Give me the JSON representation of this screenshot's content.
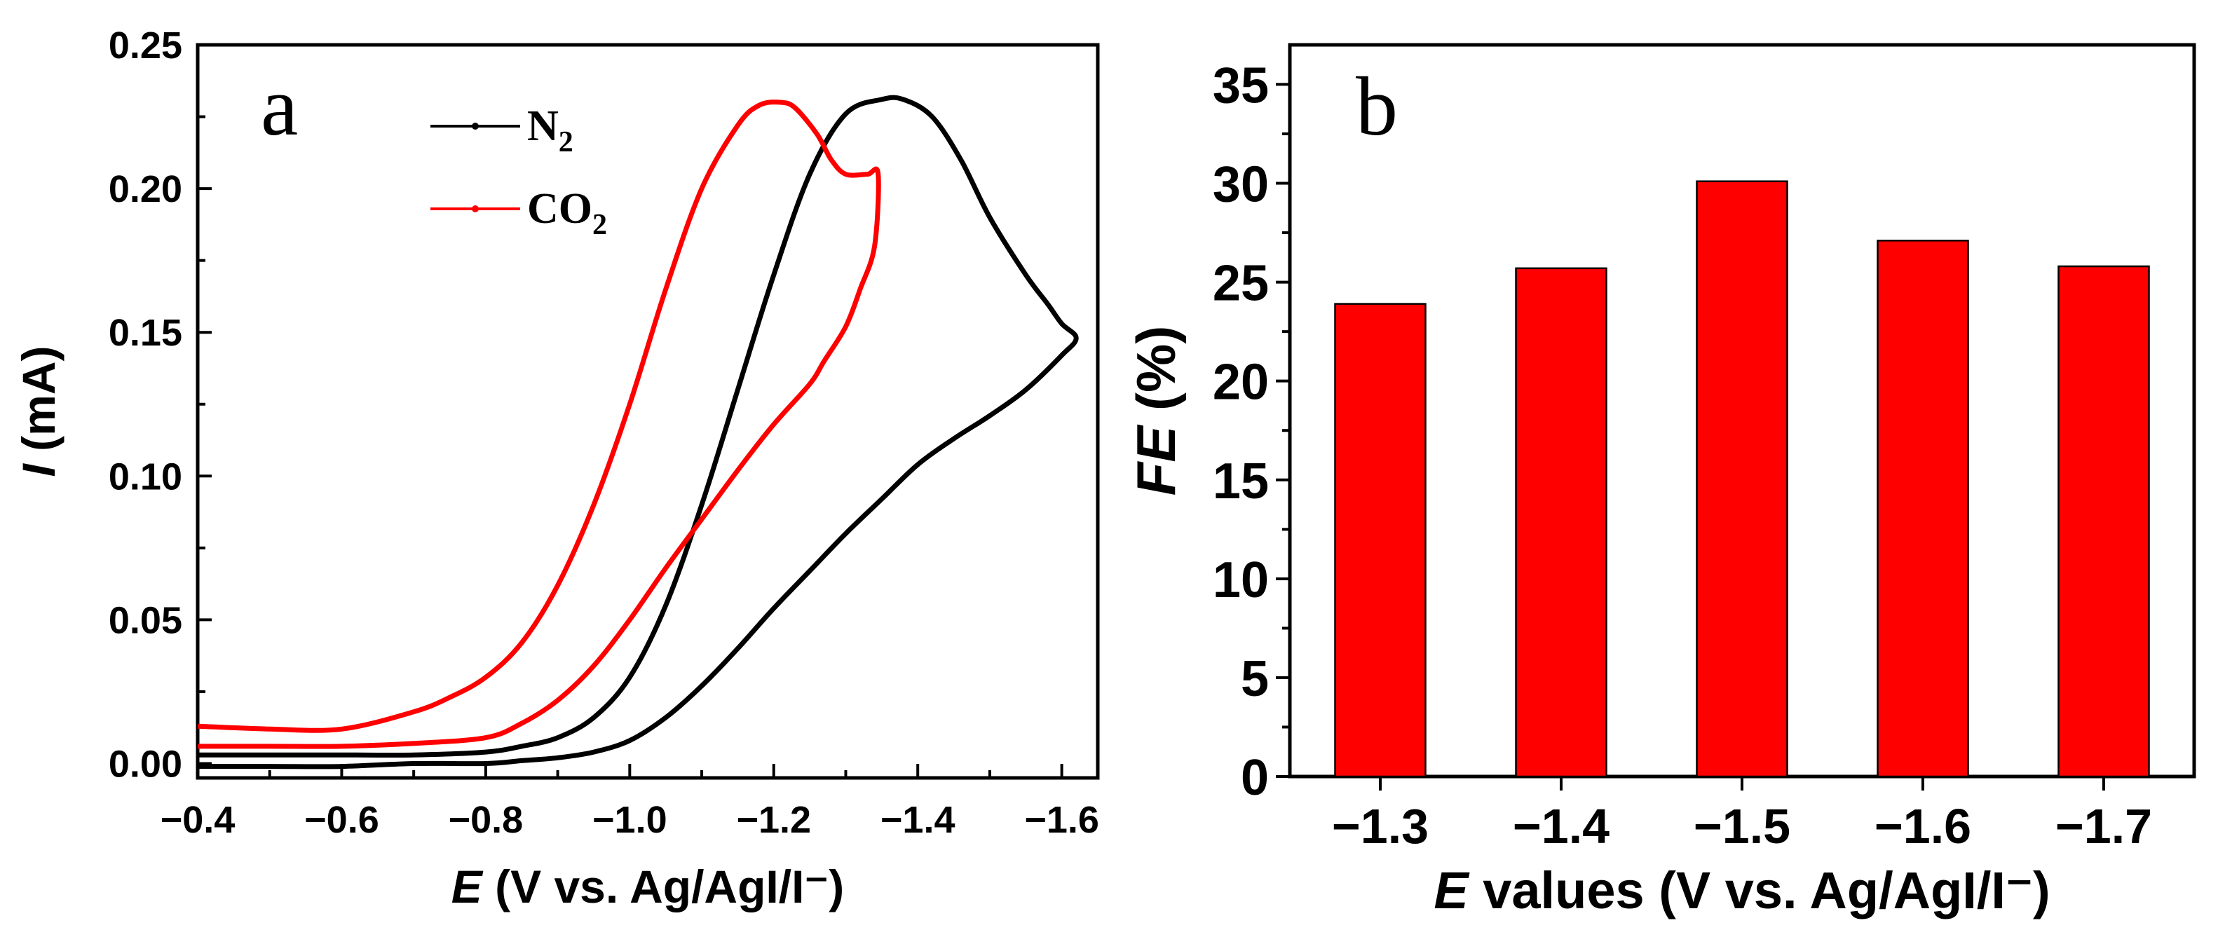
{
  "chart_data": [
    {
      "type": "line",
      "panel_label": "a",
      "xlabel_italic": "E",
      "xlabel_rest": " (V vs. Ag/AgI/I⁻)",
      "ylabel_italic": "I",
      "ylabel_rest": " (mA)",
      "xlim": [
        -0.4,
        -1.65
      ],
      "ylim": [
        -0.005,
        0.25
      ],
      "x_ticks": [
        "−0.4",
        "−0.6",
        "−0.8",
        "−1.0",
        "−1.2",
        "−1.4",
        "−1.6"
      ],
      "x_tick_values": [
        -0.4,
        -0.6,
        -0.8,
        -1.0,
        -1.2,
        -1.4,
        -1.6
      ],
      "y_ticks": [
        "0.00",
        "0.05",
        "0.10",
        "0.15",
        "0.20",
        "0.25"
      ],
      "y_tick_values": [
        0.0,
        0.05,
        0.1,
        0.15,
        0.2,
        0.25
      ],
      "legend_position": "top-center",
      "series": [
        {
          "name": "N₂",
          "legend_main": "N",
          "legend_sub": "2",
          "color": "#000000",
          "x": [
            -0.4,
            -0.5,
            -0.6,
            -0.7,
            -0.8,
            -0.85,
            -0.9,
            -0.95,
            -1.0,
            -1.05,
            -1.1,
            -1.15,
            -1.2,
            -1.25,
            -1.3,
            -1.35,
            -1.38,
            -1.42,
            -1.46,
            -1.5,
            -1.55,
            -1.58,
            -1.6,
            -1.62,
            -1.6,
            -1.55,
            -1.5,
            -1.45,
            -1.4,
            -1.35,
            -1.3,
            -1.25,
            -1.2,
            -1.15,
            -1.1,
            -1.05,
            -1.0,
            -0.95,
            -0.9,
            -0.85,
            -0.8,
            -0.7,
            -0.6,
            -0.5,
            -0.4
          ],
          "y": [
            0.003,
            0.003,
            0.003,
            0.003,
            0.004,
            0.006,
            0.009,
            0.016,
            0.03,
            0.055,
            0.09,
            0.13,
            0.17,
            0.205,
            0.226,
            0.231,
            0.231,
            0.225,
            0.21,
            0.19,
            0.17,
            0.16,
            0.153,
            0.148,
            0.142,
            0.13,
            0.121,
            0.113,
            0.104,
            0.092,
            0.08,
            0.067,
            0.054,
            0.04,
            0.027,
            0.016,
            0.008,
            0.004,
            0.002,
            0.001,
            0.0,
            0.0,
            -0.001,
            -0.001,
            -0.001
          ]
        },
        {
          "name": "CO₂",
          "legend_main": "CO",
          "legend_sub": "2",
          "color": "#ff0000",
          "x": [
            -0.4,
            -0.5,
            -0.6,
            -0.7,
            -0.75,
            -0.8,
            -0.85,
            -0.9,
            -0.95,
            -1.0,
            -1.05,
            -1.1,
            -1.15,
            -1.18,
            -1.21,
            -1.23,
            -1.26,
            -1.28,
            -1.3,
            -1.33,
            -1.345,
            -1.34,
            -1.32,
            -1.3,
            -1.27,
            -1.25,
            -1.2,
            -1.15,
            -1.1,
            -1.05,
            -1.0,
            -0.95,
            -0.9,
            -0.85,
            -0.8,
            -0.7,
            -0.6,
            -0.5,
            -0.4
          ],
          "y": [
            0.013,
            0.012,
            0.012,
            0.018,
            0.023,
            0.03,
            0.042,
            0.062,
            0.09,
            0.125,
            0.165,
            0.2,
            0.222,
            0.229,
            0.23,
            0.228,
            0.219,
            0.21,
            0.205,
            0.205,
            0.205,
            0.18,
            0.165,
            0.152,
            0.14,
            0.132,
            0.118,
            0.102,
            0.085,
            0.068,
            0.05,
            0.034,
            0.022,
            0.014,
            0.009,
            0.007,
            0.006,
            0.006,
            0.006
          ]
        }
      ]
    },
    {
      "type": "bar",
      "panel_label": "b",
      "xlabel_italic": "E",
      "xlabel_rest": " values (V vs. Ag/AgI/I⁻)",
      "ylabel_italic": "FE",
      "ylabel_rest": " (%)",
      "categories": [
        "−1.3",
        "−1.4",
        "−1.5",
        "−1.6",
        "−1.7"
      ],
      "values": [
        23.9,
        25.7,
        30.1,
        27.1,
        25.8
      ],
      "ylim": [
        0,
        37
      ],
      "y_ticks": [
        "0",
        "5",
        "10",
        "15",
        "20",
        "25",
        "30",
        "35"
      ],
      "y_tick_values": [
        0,
        5,
        10,
        15,
        20,
        25,
        30,
        35
      ],
      "bar_color": "#ff0000"
    }
  ]
}
